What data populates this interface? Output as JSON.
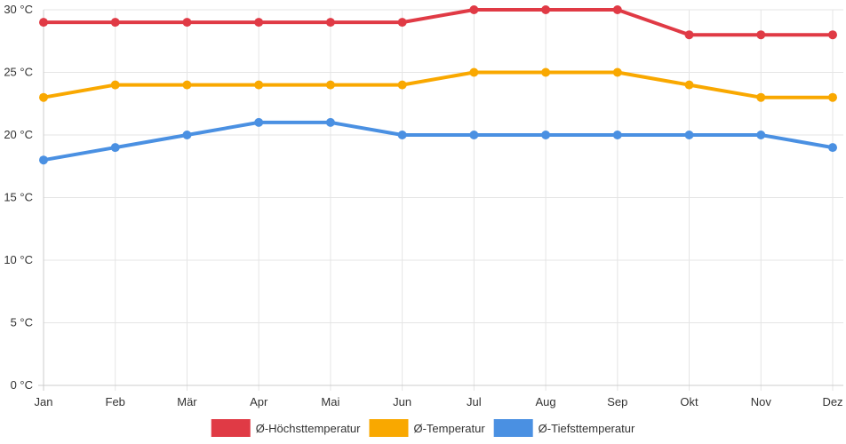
{
  "chart_data": {
    "type": "line",
    "title": "",
    "xlabel": "",
    "ylabel": "",
    "y_unit": "°C",
    "ylim": [
      0,
      30
    ],
    "y_ticks": [
      0,
      5,
      10,
      15,
      20,
      25,
      30
    ],
    "y_tick_labels": [
      "0 °C",
      "5 °C",
      "10 °C",
      "15 °C",
      "20 °C",
      "25 °C",
      "30 °C"
    ],
    "grid": true,
    "legend_position": "bottom",
    "categories": [
      "Jan",
      "Feb",
      "Mär",
      "Apr",
      "Mai",
      "Jun",
      "Jul",
      "Aug",
      "Sep",
      "Okt",
      "Nov",
      "Dez"
    ],
    "series": [
      {
        "name": "Ø-Höchsttemperatur",
        "color": "#e03a45",
        "values": [
          29,
          29,
          29,
          29,
          29,
          29,
          30,
          30,
          30,
          28,
          28,
          28
        ]
      },
      {
        "name": "Ø-Temperatur",
        "color": "#f9a800",
        "values": [
          23,
          24,
          24,
          24,
          24,
          24,
          25,
          25,
          25,
          24,
          23,
          23
        ]
      },
      {
        "name": "Ø-Tiefsttemperatur",
        "color": "#4a90e2",
        "values": [
          18,
          19,
          20,
          21,
          21,
          20,
          20,
          20,
          20,
          20,
          20,
          19
        ]
      }
    ]
  }
}
